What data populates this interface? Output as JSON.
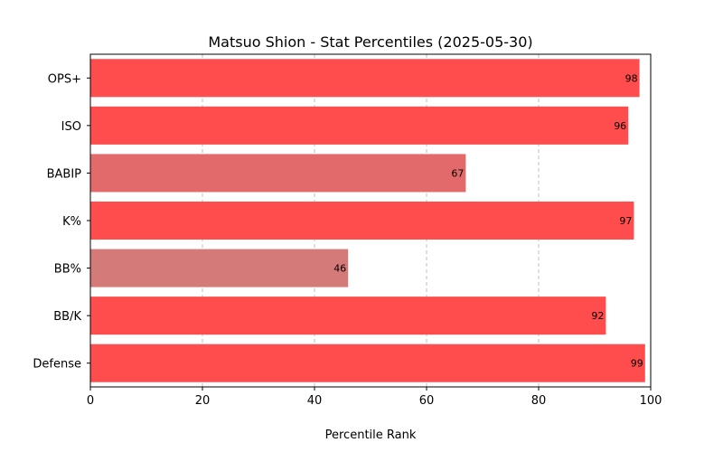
{
  "chart_data": {
    "type": "bar",
    "orientation": "horizontal",
    "title": "Matsuo Shion - Stat Percentiles (2025-05-30)",
    "xlabel": "Percentile Rank",
    "ylabel": "",
    "xlim": [
      0,
      100
    ],
    "xticks": [
      0,
      20,
      40,
      60,
      80,
      100
    ],
    "grid": "x-dashed",
    "categories": [
      "OPS+",
      "ISO",
      "BABIP",
      "K%",
      "BB%",
      "BB/K",
      "Defense"
    ],
    "values": [
      98,
      96,
      67,
      97,
      46,
      92,
      99
    ],
    "colors": [
      "#ff4c4c",
      "#ff4c4c",
      "#e36a6a",
      "#ff4c4c",
      "#d47a78",
      "#ff4c4c",
      "#ff4c4c"
    ]
  }
}
